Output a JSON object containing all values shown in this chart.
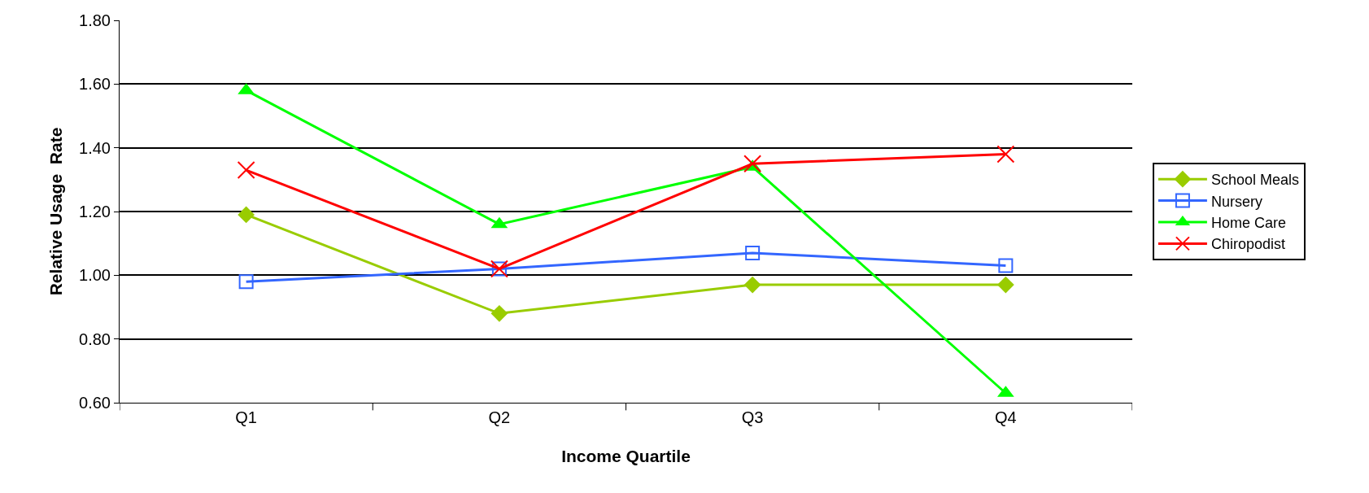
{
  "chart_data": {
    "type": "line",
    "xlabel": "Income Quartile",
    "ylabel": "Relative Usage  Rate",
    "categories": [
      "Q1",
      "Q2",
      "Q3",
      "Q4"
    ],
    "series": [
      {
        "name": "School Meals",
        "color": "#99cc00",
        "marker": "diamond",
        "values": [
          1.19,
          0.88,
          0.97,
          0.97
        ]
      },
      {
        "name": "Nursery",
        "color": "#3366ff",
        "marker": "square",
        "values": [
          0.98,
          1.02,
          1.07,
          1.03
        ]
      },
      {
        "name": "Home Care",
        "color": "#00ff00",
        "marker": "triangle",
        "values": [
          1.58,
          1.16,
          1.34,
          0.63
        ]
      },
      {
        "name": "Chiropodist",
        "color": "#ff0000",
        "marker": "cross",
        "values": [
          1.33,
          1.02,
          1.35,
          1.38
        ]
      }
    ],
    "ylim": [
      0.6,
      1.8
    ],
    "yticks": [
      {
        "value": 0.6,
        "label": "0.60"
      },
      {
        "value": 0.8,
        "label": "0.80"
      },
      {
        "value": 1.0,
        "label": "1.00"
      },
      {
        "value": 1.2,
        "label": "1.20"
      },
      {
        "value": 1.4,
        "label": "1.40"
      },
      {
        "value": 1.6,
        "label": "1.60"
      },
      {
        "value": 1.8,
        "label": "1.80"
      }
    ],
    "grid": "y",
    "legend": "right",
    "line_style": "solid"
  }
}
